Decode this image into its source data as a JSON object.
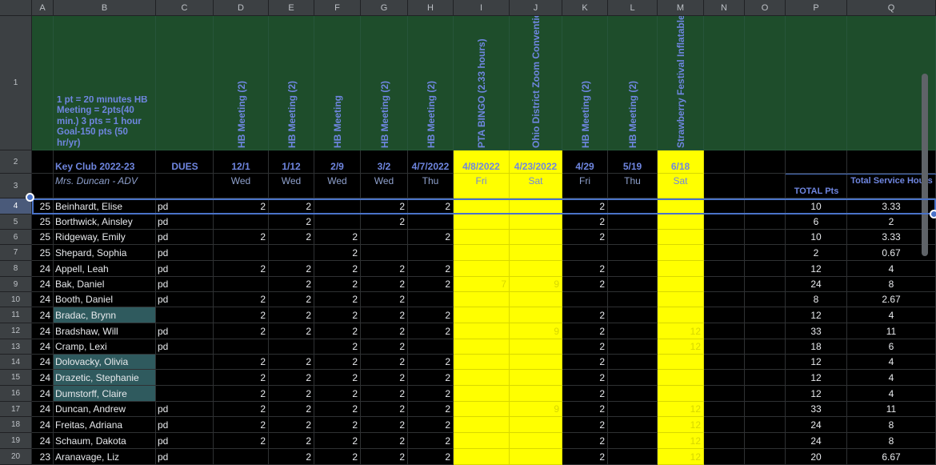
{
  "columns": [
    "A",
    "B",
    "C",
    "D",
    "E",
    "F",
    "G",
    "H",
    "I",
    "J",
    "K",
    "L",
    "M",
    "N",
    "O",
    "P",
    "Q"
  ],
  "row_numbers": [
    "1",
    "2",
    "3",
    "4",
    "5",
    "6",
    "7",
    "8",
    "9",
    "10",
    "11",
    "12",
    "13",
    "14",
    "15",
    "16",
    "17",
    "18",
    "19",
    "20"
  ],
  "header": {
    "note": "1 pt = 20 minutes HB Meeting = 2pts(40 min.)              3 pts = 1 hour                    Goal-150 pts (50 hr/yr)",
    "events": [
      {
        "col": "D",
        "name": "HB Meeting (2)",
        "date": "12/1",
        "day": "Wed",
        "highlight": false
      },
      {
        "col": "E",
        "name": "HB Meeting (2)",
        "date": "1/12",
        "day": "Wed",
        "highlight": false
      },
      {
        "col": "F",
        "name": "HB Meeting",
        "date": "2/9",
        "day": "Wed",
        "highlight": false
      },
      {
        "col": "G",
        "name": "HB Meeting (2)",
        "date": "3/2",
        "day": "Wed",
        "highlight": false
      },
      {
        "col": "H",
        "name": "HB Meeting (2)",
        "date": "4/7/2022",
        "day": "Thu",
        "highlight": false
      },
      {
        "col": "I",
        "name": "PTA BINGO (2.33 hours)",
        "date": "4/8/2022",
        "day": "Fri",
        "highlight": true
      },
      {
        "col": "J",
        "name": "Ohio District Zoom Convention",
        "date": "4/23/2022",
        "day": "Sat",
        "highlight": true
      },
      {
        "col": "K",
        "name": "HB Meeting (2)",
        "date": "4/29",
        "day": "Fri",
        "highlight": false
      },
      {
        "col": "L",
        "name": "HB Meeting (2)",
        "date": "5/19",
        "day": "Thu",
        "highlight": false
      },
      {
        "col": "M",
        "name": "Strawberry Festival Inflatables",
        "date": "6/18",
        "day": "Sat",
        "highlight": true
      }
    ],
    "club_title": "Key Club 2022-23",
    "advisor": "Mrs. Duncan - ADV",
    "dues_label": "DUES",
    "total_pts_label": "TOTAL Pts",
    "total_hours_label": "Total Service Hours"
  },
  "rows": [
    {
      "a": "25",
      "name": "Beinhardt, Elise",
      "dues": "pd",
      "teal": false,
      "d": "2",
      "e": "2",
      "f": "",
      "g": "2",
      "h": "2",
      "i": "",
      "j": "",
      "k": "2",
      "l": "",
      "m": "",
      "p": "10",
      "q": "3.33"
    },
    {
      "a": "25",
      "name": "Borthwick, Ainsley",
      "dues": "pd",
      "teal": false,
      "d": "",
      "e": "2",
      "f": "",
      "g": "2",
      "h": "",
      "i": "",
      "j": "",
      "k": "2",
      "l": "",
      "m": "",
      "p": "6",
      "q": "2"
    },
    {
      "a": "25",
      "name": "Ridgeway, Emily",
      "dues": "pd",
      "teal": false,
      "d": "2",
      "e": "2",
      "f": "2",
      "g": "",
      "h": "2",
      "i": "",
      "j": "",
      "k": "2",
      "l": "",
      "m": "",
      "p": "10",
      "q": "3.33"
    },
    {
      "a": "25",
      "name": "Shepard, Sophia",
      "dues": "pd",
      "teal": false,
      "d": "",
      "e": "",
      "f": "2",
      "g": "",
      "h": "",
      "i": "",
      "j": "",
      "k": "",
      "l": "",
      "m": "",
      "p": "2",
      "q": "0.67"
    },
    {
      "a": "24",
      "name": "Appell, Leah",
      "dues": "pd",
      "teal": false,
      "d": "2",
      "e": "2",
      "f": "2",
      "g": "2",
      "h": "2",
      "i": "",
      "j": "",
      "k": "2",
      "l": "",
      "m": "",
      "p": "12",
      "q": "4"
    },
    {
      "a": "24",
      "name": "Bak, Daniel",
      "dues": "pd",
      "teal": false,
      "d": "",
      "e": "2",
      "f": "2",
      "g": "2",
      "h": "2",
      "i": "7",
      "j": "9",
      "k": "2",
      "l": "",
      "m": "",
      "p": "24",
      "q": "8"
    },
    {
      "a": "24",
      "name": "Booth, Daniel",
      "dues": "pd",
      "teal": false,
      "d": "2",
      "e": "2",
      "f": "2",
      "g": "2",
      "h": "",
      "i": "",
      "j": "",
      "k": "",
      "l": "",
      "m": "",
      "p": "8",
      "q": "2.67"
    },
    {
      "a": "24",
      "name": "Bradac, Brynn",
      "dues": "",
      "teal": true,
      "d": "2",
      "e": "2",
      "f": "2",
      "g": "2",
      "h": "2",
      "i": "",
      "j": "",
      "k": "2",
      "l": "",
      "m": "",
      "p": "12",
      "q": "4"
    },
    {
      "a": "24",
      "name": "Bradshaw, Will",
      "dues": "pd",
      "teal": false,
      "d": "2",
      "e": "2",
      "f": "2",
      "g": "2",
      "h": "2",
      "i": "",
      "j": "9",
      "k": "2",
      "l": "",
      "m": "12",
      "p": "33",
      "q": "11"
    },
    {
      "a": "24",
      "name": "Cramp, Lexi",
      "dues": "pd",
      "teal": false,
      "d": "",
      "e": "",
      "f": "2",
      "g": "2",
      "h": "",
      "i": "",
      "j": "",
      "k": "2",
      "l": "",
      "m": "12",
      "p": "18",
      "q": "6"
    },
    {
      "a": "24",
      "name": "Dolovacky, Olivia",
      "dues": "",
      "teal": true,
      "d": "2",
      "e": "2",
      "f": "2",
      "g": "2",
      "h": "2",
      "i": "",
      "j": "",
      "k": "2",
      "l": "",
      "m": "",
      "p": "12",
      "q": "4"
    },
    {
      "a": "24",
      "name": "Drazetic, Stephanie",
      "dues": "",
      "teal": true,
      "d": "2",
      "e": "2",
      "f": "2",
      "g": "2",
      "h": "2",
      "i": "",
      "j": "",
      "k": "2",
      "l": "",
      "m": "",
      "p": "12",
      "q": "4"
    },
    {
      "a": "24",
      "name": "Dumstorff, Claire",
      "dues": "",
      "teal": true,
      "d": "2",
      "e": "2",
      "f": "2",
      "g": "2",
      "h": "2",
      "i": "",
      "j": "",
      "k": "2",
      "l": "",
      "m": "",
      "p": "12",
      "q": "4"
    },
    {
      "a": "24",
      "name": "Duncan, Andrew",
      "dues": "pd",
      "teal": false,
      "d": "2",
      "e": "2",
      "f": "2",
      "g": "2",
      "h": "2",
      "i": "",
      "j": "9",
      "k": "2",
      "l": "",
      "m": "12",
      "p": "33",
      "q": "11"
    },
    {
      "a": "24",
      "name": "Freitas, Adriana",
      "dues": "pd",
      "teal": false,
      "d": "2",
      "e": "2",
      "f": "2",
      "g": "2",
      "h": "2",
      "i": "",
      "j": "",
      "k": "2",
      "l": "",
      "m": "12",
      "p": "24",
      "q": "8"
    },
    {
      "a": "24",
      "name": "Schaum, Dakota",
      "dues": "pd",
      "teal": false,
      "d": "2",
      "e": "2",
      "f": "2",
      "g": "2",
      "h": "2",
      "i": "",
      "j": "",
      "k": "2",
      "l": "",
      "m": "12",
      "p": "24",
      "q": "8"
    },
    {
      "a": "23",
      "name": "Aranavage, Liz",
      "dues": "pd",
      "teal": false,
      "d": "",
      "e": "2",
      "f": "2",
      "g": "2",
      "h": "2",
      "i": "",
      "j": "",
      "k": "2",
      "l": "",
      "m": "12",
      "p": "20",
      "q": "6.67"
    }
  ],
  "selected_row": "4",
  "colors": {
    "green_header": "#1e4d2b",
    "highlight": "#ffff00",
    "teal": "#2f5a5e",
    "selection": "#4a73c8",
    "header_text": "#6f86e0"
  }
}
